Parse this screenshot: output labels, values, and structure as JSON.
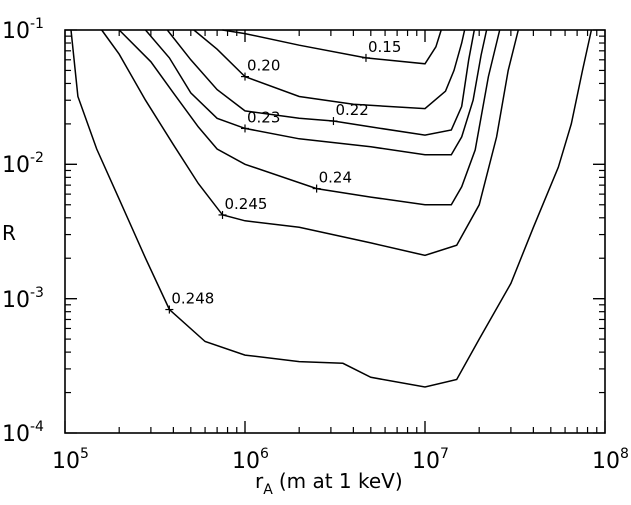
{
  "chart_data": {
    "type": "line",
    "title": "",
    "xlabel_main": "r",
    "xlabel_sub": "A",
    "xlabel_rest": "(m at 1 keV)",
    "ylabel": "R",
    "x_scale": "log",
    "y_scale": "log",
    "xlim": [
      100000,
      100000000
    ],
    "ylim": [
      0.0001,
      0.1
    ],
    "grid": false,
    "x_ticks": [
      {
        "base": "10",
        "exp": "5"
      },
      {
        "base": "10",
        "exp": "6"
      },
      {
        "base": "10",
        "exp": "7"
      },
      {
        "base": "10",
        "exp": "8"
      }
    ],
    "y_ticks": [
      {
        "base": "10",
        "exp": "-4"
      },
      {
        "base": "10",
        "exp": "-3"
      },
      {
        "base": "10",
        "exp": "-2"
      },
      {
        "base": "10",
        "exp": "-1"
      }
    ],
    "series": [
      {
        "name": "0.15",
        "x": [
          750000,
          1000000,
          2000000,
          4700000,
          10000000,
          11500000,
          12300000
        ],
        "y": [
          0.1,
          0.094,
          0.077,
          0.062,
          0.056,
          0.075,
          0.1
        ]
      },
      {
        "name": "0.20",
        "x": [
          520000,
          700000,
          1000000,
          2000000,
          4000000,
          10000000,
          13000000,
          14500000,
          16000000,
          16600000
        ],
        "y": [
          0.1,
          0.072,
          0.045,
          0.032,
          0.028,
          0.026,
          0.035,
          0.05,
          0.08,
          0.1
        ]
      },
      {
        "name": "0.22",
        "x": [
          370000,
          500000,
          700000,
          1000000,
          2000000,
          3100000,
          5000000,
          10000000,
          14000000,
          16000000,
          17500000,
          18800000
        ],
        "y": [
          0.1,
          0.06,
          0.036,
          0.025,
          0.022,
          0.021,
          0.019,
          0.0165,
          0.018,
          0.027,
          0.06,
          0.1
        ]
      },
      {
        "name": "0.23",
        "x": [
          280000,
          380000,
          500000,
          700000,
          1000000,
          2000000,
          5000000,
          10000000,
          14000000,
          16000000,
          18500000,
          20500000,
          22000000
        ],
        "y": [
          0.1,
          0.062,
          0.034,
          0.022,
          0.0185,
          0.0155,
          0.0135,
          0.0118,
          0.0118,
          0.016,
          0.03,
          0.065,
          0.1
        ]
      },
      {
        "name": "0.24",
        "x": [
          200000,
          300000,
          400000,
          550000,
          700000,
          1000000,
          2500000,
          5000000,
          10000000,
          14000000,
          16000000,
          19000000,
          22500000,
          26000000
        ],
        "y": [
          0.1,
          0.058,
          0.034,
          0.019,
          0.013,
          0.01,
          0.0066,
          0.0057,
          0.005,
          0.005,
          0.0068,
          0.0128,
          0.045,
          0.1
        ]
      },
      {
        "name": "0.245",
        "x": [
          160000,
          200000,
          280000,
          400000,
          550000,
          750000,
          1000000,
          2000000,
          5000000,
          10000000,
          15000000,
          20000000,
          25000000,
          29000000,
          33000000
        ],
        "y": [
          0.1,
          0.066,
          0.03,
          0.014,
          0.0072,
          0.0042,
          0.0038,
          0.0034,
          0.0026,
          0.0021,
          0.0025,
          0.005,
          0.016,
          0.05,
          0.1
        ]
      },
      {
        "name": "0.248",
        "x": [
          108000,
          118000,
          150000,
          200000,
          280000,
          380000,
          600000,
          1000000,
          2000000,
          3500000,
          5000000,
          10000000,
          15000000,
          20000000,
          30000000,
          40000000,
          55000000,
          65000000,
          75000000,
          84000000
        ],
        "y": [
          0.1,
          0.032,
          0.013,
          0.0055,
          0.002,
          0.00083,
          0.00048,
          0.00038,
          0.00034,
          0.00033,
          0.00026,
          0.00022,
          0.00025,
          0.0005,
          0.0013,
          0.0034,
          0.0095,
          0.02,
          0.05,
          0.1
        ]
      }
    ],
    "contour_labels": [
      {
        "text": "0.15",
        "x": 4700000,
        "y": 0.062
      },
      {
        "text": "0.20",
        "x": 1000000,
        "y": 0.045
      },
      {
        "text": "0.22",
        "x": 3100000,
        "y": 0.021
      },
      {
        "text": "0.23",
        "x": 1000000,
        "y": 0.0185
      },
      {
        "text": "0.24",
        "x": 2500000,
        "y": 0.0066
      },
      {
        "text": "0.245",
        "x": 750000,
        "y": 0.0042
      },
      {
        "text": "0.248",
        "x": 380000,
        "y": 0.00083
      }
    ]
  }
}
